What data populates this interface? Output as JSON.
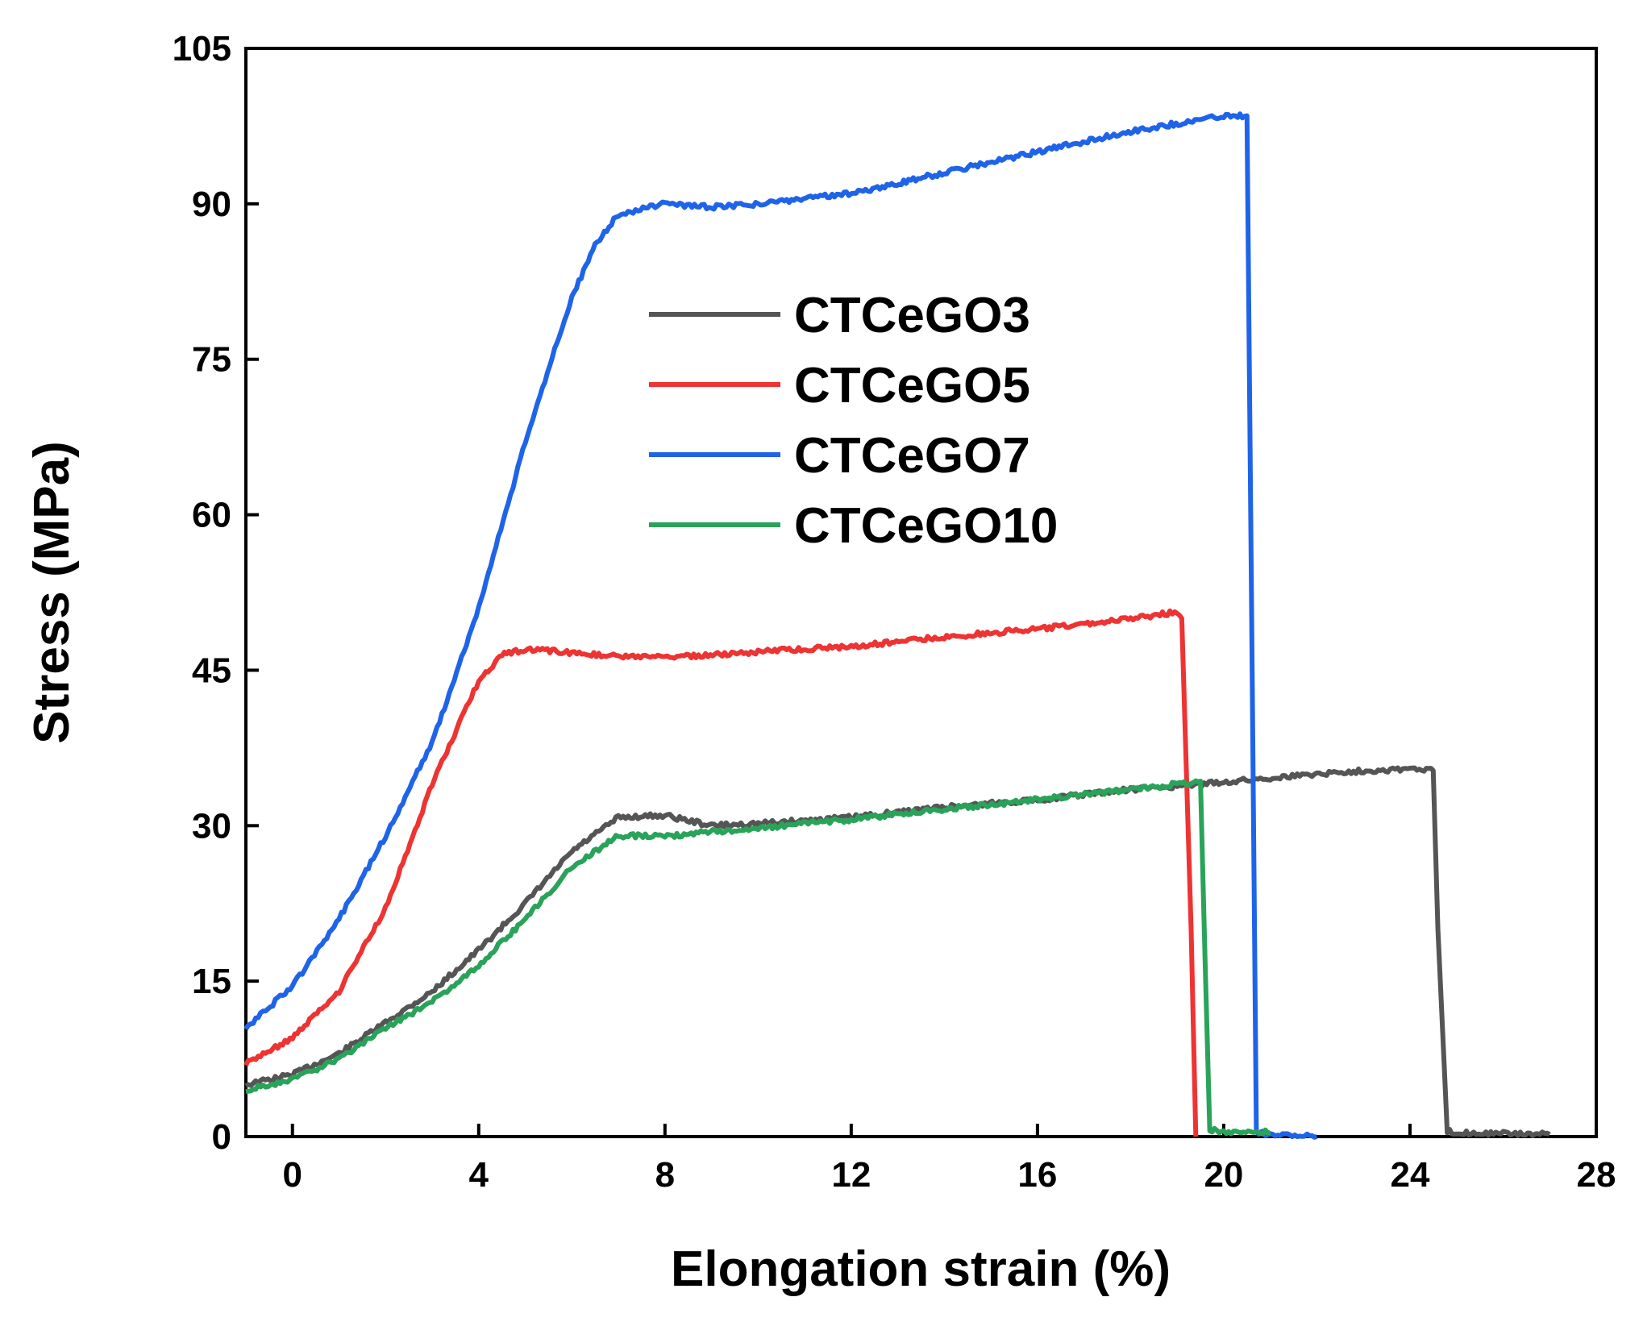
{
  "chart_data": {
    "type": "line",
    "title": "",
    "xlabel": "Elongation strain (%)",
    "ylabel": "Stress (MPa)",
    "xlim": [
      -1,
      28
    ],
    "ylim": [
      0,
      105
    ],
    "xticks": [
      0,
      4,
      8,
      12,
      16,
      20,
      24,
      28
    ],
    "yticks": [
      0,
      15,
      30,
      45,
      60,
      75,
      90,
      105
    ],
    "grid": false,
    "legend_position": "upper-center",
    "series": [
      {
        "name": "CTCeGO3",
        "color": "#555555",
        "x": [
          -1,
          0,
          1,
          2,
          3,
          4,
          5,
          6,
          7,
          8,
          9,
          10,
          12,
          14,
          16,
          18,
          19,
          20,
          21,
          22,
          23,
          24,
          24.5,
          24.6,
          24.8,
          25,
          26,
          27
        ],
        "y": [
          5,
          6,
          8,
          11,
          14,
          18,
          22.5,
          27.5,
          30.8,
          31,
          30,
          30.2,
          30.8,
          31.8,
          32.5,
          33.5,
          33.8,
          34.2,
          34.6,
          35,
          35.3,
          35.5,
          35.3,
          20,
          0.5,
          0.4,
          0.3,
          0.2
        ]
      },
      {
        "name": "CTCeGO5",
        "color": "#ee3333",
        "x": [
          -1,
          0,
          1,
          2,
          3,
          4,
          4.5,
          5,
          6,
          7,
          8,
          10,
          12,
          14,
          16,
          18,
          19,
          19.1,
          19.3,
          19.4
        ],
        "y": [
          7,
          9.5,
          14,
          22,
          34,
          44,
          46.5,
          47,
          46.7,
          46.3,
          46.2,
          46.8,
          47.3,
          48.2,
          49,
          50,
          50.6,
          50,
          20,
          0
        ]
      },
      {
        "name": "CTCeGO7",
        "color": "#1f64e8",
        "x": [
          -1,
          0,
          1,
          2,
          3,
          4,
          5,
          6,
          6.5,
          7,
          8,
          9,
          10,
          12,
          14,
          16,
          18,
          20,
          20.5,
          20.6,
          20.7,
          21,
          22
        ],
        "y": [
          10.5,
          14.5,
          21,
          29,
          38,
          51,
          67,
          81,
          86,
          89,
          90,
          89.7,
          90,
          91,
          93,
          95,
          97,
          98.5,
          98.5,
          50,
          0.5,
          0.2,
          0
        ]
      },
      {
        "name": "CTCeGO10",
        "color": "#2aa35a",
        "x": [
          -1,
          0,
          1,
          2,
          3,
          4,
          5,
          6,
          7,
          8,
          10,
          12,
          14,
          16,
          18,
          19,
          19.5,
          19.6,
          19.7,
          20,
          21
        ],
        "y": [
          4.5,
          5.5,
          7.5,
          10.5,
          13,
          16.5,
          21,
          26,
          29,
          29,
          29.8,
          30.6,
          31.6,
          32.5,
          33.5,
          34,
          34.3,
          17,
          0.6,
          0.5,
          0.4
        ]
      }
    ]
  }
}
